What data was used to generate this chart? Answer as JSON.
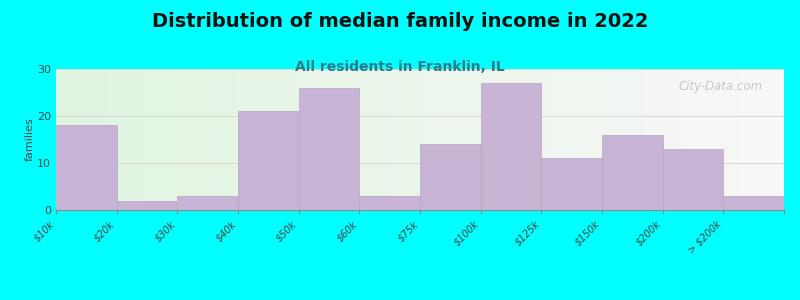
{
  "title": "Distribution of median family income in 2022",
  "subtitle": "All residents in Franklin, IL",
  "ylabel": "families",
  "background_outer": "#00FFFF",
  "bar_color": "#c8b4d4",
  "bar_edge_color": "#b8a4c4",
  "tick_labels": [
    "$10k",
    "$20k",
    "$30k",
    "$40k",
    "$50k",
    "$60k",
    "$75k",
    "$100k",
    "$125k",
    "$150k",
    "$200k",
    "> $200k"
  ],
  "values": [
    18,
    2,
    3,
    21,
    26,
    3,
    14,
    27,
    11,
    16,
    13,
    3
  ],
  "ylim": [
    0,
    30
  ],
  "yticks": [
    0,
    10,
    20,
    30
  ],
  "grid_color": "#d8d8cc",
  "watermark": "City-Data.com",
  "title_fontsize": 14,
  "subtitle_fontsize": 10,
  "ylabel_fontsize": 8,
  "tick_fontsize": 7
}
